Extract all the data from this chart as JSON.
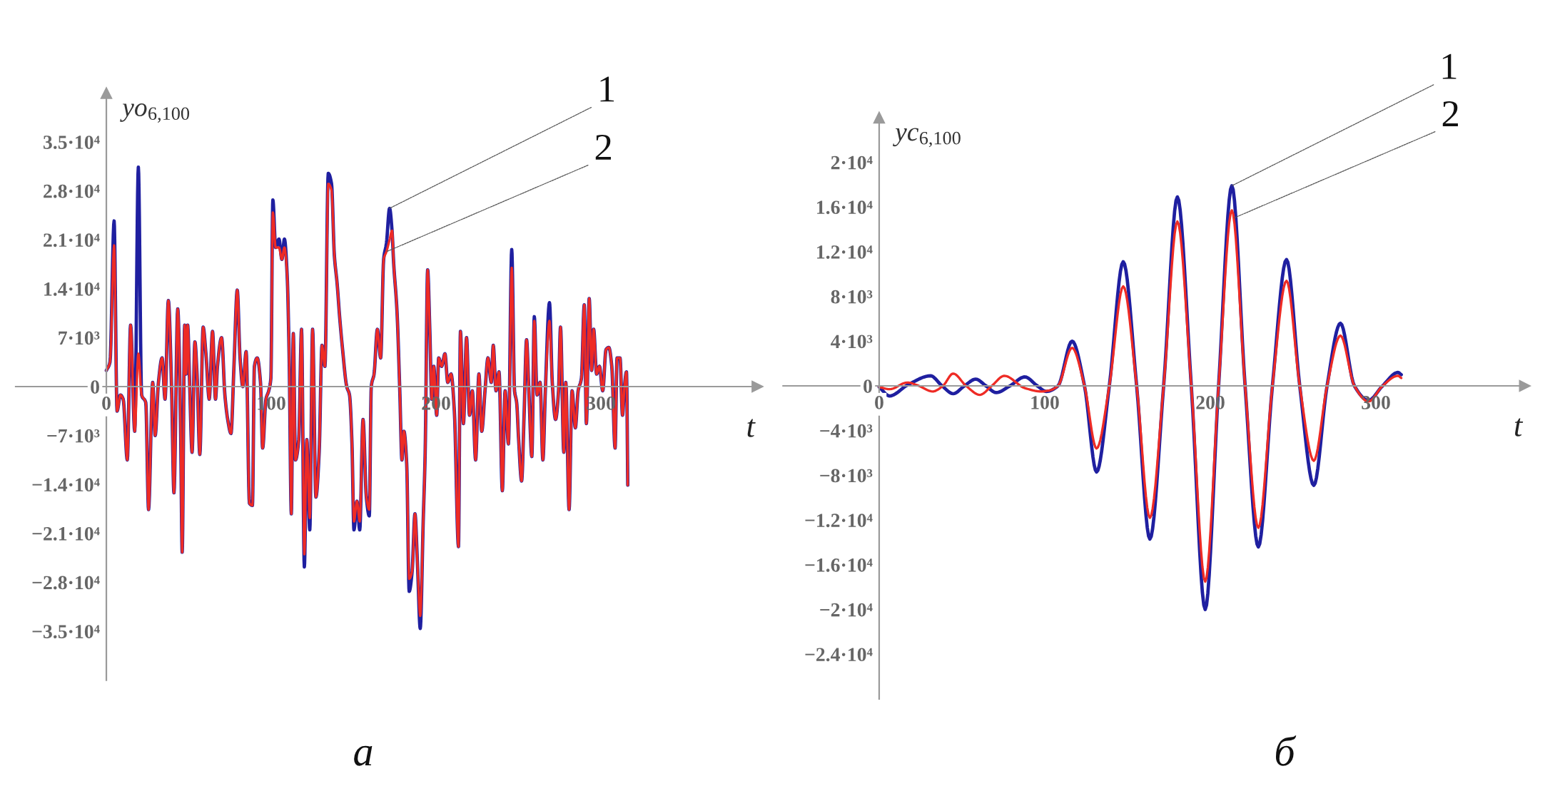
{
  "chart_data": [
    {
      "type": "line",
      "xlabel": "t",
      "ylabel": "yo$_{6,100}$",
      "annotations": [
        "а",
        {
          "text": "1",
          "x": 171.8,
          "y": 25500
        },
        {
          "text": "2",
          "x": 169.9,
          "y": 19300
        }
      ],
      "x": [
        0,
        2.2,
        4.7,
        6.5,
        8.5,
        10.2,
        12.7,
        14.7,
        17.2,
        19.4,
        21.4,
        23.9,
        25.6,
        28.1,
        29.6,
        31.6,
        33.8,
        35.6,
        37.6,
        39.6,
        41,
        43.3,
        45,
        46,
        47.5,
        48.4,
        49.3,
        50.5,
        52,
        53.7,
        55,
        56.7,
        58.7,
        60.4,
        62.4,
        64.4,
        66.2,
        67.4,
        69.9,
        71.9,
        73.6,
        75.6,
        77.4,
        79.4,
        81.1,
        82.8,
        84.8,
        86.8,
        88.6,
        89.8,
        91.5,
        93.5,
        94.8,
        96.8,
        98.5,
        99.8,
        101,
        102.7,
        104.7,
        106.5,
        108,
        109.7,
        110.9,
        112.2,
        113.4,
        114.7,
        116.7,
        118.4,
        120.1,
        121.6,
        123.4,
        125.1,
        127.1,
        129.1,
        130.8,
        132.6,
        134.6,
        136.6,
        138.3,
        140,
        141.5,
        143.3,
        145.8,
        147.5,
        149,
        150.2,
        152,
        153.7,
        155.7,
        157.7,
        159.5,
        160.7,
        162.4,
        164.4,
        166.4,
        168.2,
        169.9,
        171.8,
        173.3,
        174.3,
        176.3,
        178,
        179.3,
        180.5,
        182.2,
        183.7,
        185.5,
        187.2,
        188.7,
        190.4,
        192.2,
        193.4,
        194.9,
        196.2,
        197.4,
        198.6,
        200.4,
        201.6,
        203.4,
        205.4,
        207.1,
        209.1,
        211.1,
        213.6,
        214.8,
        216.6,
        218.5,
        220.3,
        222,
        224,
        226,
        227.7,
        229.7,
        231.5,
        233.5,
        234.7,
        236.4,
        238.2,
        240.2,
        241.9,
        243.9,
        245.9,
        247.6,
        248.9,
        250.1,
        251.9,
        253.4,
        254.9,
        256.3,
        258.1,
        259.6,
        261.3,
        263.1,
        264.8,
        266.3,
        268.8,
        270.5,
        272.5,
        274.3,
        275.5,
        277.5,
        278.7,
        280.7,
        282.5,
        284.5,
        286.2,
        288.2,
        289.9,
        291.2,
        292.9,
        294.4,
        295.6,
        297.4,
        299.1,
        301.1,
        303.1,
        304.8,
        306.6,
        308.6,
        309.8,
        311.6,
        313.1,
        314.3,
        315.5,
        316.3
      ],
      "series": [
        {
          "color": "#1f1fa0",
          "values": [
            2300,
            3500,
            23700,
            -3500,
            -1200,
            -1800,
            -10500,
            8800,
            -6400,
            31400,
            -1200,
            -2300,
            -17600,
            600,
            -7000,
            600,
            4100,
            -1800,
            12300,
            -600,
            -15200,
            11100,
            -5300,
            -23700,
            8800,
            1800,
            8800,
            600,
            -9400,
            6400,
            1800,
            -9700,
            8500,
            4700,
            -1800,
            7900,
            -1800,
            2900,
            7000,
            -1200,
            -4700,
            -6700,
            2900,
            13800,
            4100,
            0,
            5000,
            -16700,
            -17000,
            2900,
            4100,
            600,
            -8800,
            -1800,
            -600,
            1200,
            26700,
            19900,
            21100,
            18200,
            21100,
            15800,
            4100,
            -18200,
            7600,
            -10500,
            -7600,
            8200,
            -25800,
            -7600,
            -20500,
            8200,
            -15800,
            -9400,
            5900,
            2900,
            30500,
            29000,
            18800,
            14700,
            10000,
            5300,
            0,
            -1200,
            -8200,
            -20500,
            -16400,
            -20500,
            -4700,
            -15800,
            -18500,
            0,
            1800,
            8200,
            4100,
            18200,
            20500,
            25500,
            22300,
            17600,
            10800,
            -600,
            -10500,
            -6400,
            -11100,
            -29300,
            -26400,
            -18200,
            -25200,
            -34600,
            -19300,
            -9400,
            16700,
            8200,
            -1800,
            2900,
            -4100,
            4100,
            2900,
            4700,
            600,
            1800,
            -3500,
            -22900,
            7900,
            -5300,
            7000,
            -4100,
            -600,
            -10500,
            1800,
            -6400,
            -600,
            4100,
            600,
            5900,
            -600,
            2100,
            -14900,
            -600,
            -8200,
            19600,
            -600,
            -2300,
            -7600,
            -13500,
            -4100,
            6700,
            -600,
            -10000,
            10000,
            -1200,
            600,
            -10500,
            -600,
            12000,
            600,
            -4700,
            -600,
            8500,
            -9400,
            600,
            -17600,
            -600,
            -5900,
            -600,
            1200,
            11700,
            -5300,
            12600,
            2300,
            8200,
            1800,
            2900,
            -600,
            5300,
            5600,
            2900,
            -8800,
            4100,
            4100,
            -4100,
            0,
            2100,
            -14100
          ]
        },
        {
          "color": "#ee2b25",
          "values": [
            2300,
            3500,
            20200,
            -3500,
            -1200,
            -1800,
            -10500,
            8800,
            -6400,
            4700,
            -1200,
            -2300,
            -17600,
            600,
            -7000,
            600,
            4100,
            -1800,
            12300,
            -600,
            -15200,
            11100,
            -5300,
            -23700,
            8800,
            1800,
            8800,
            600,
            -9400,
            6400,
            1800,
            -9700,
            8500,
            4700,
            -1800,
            7900,
            -1800,
            2900,
            7000,
            -1200,
            -4700,
            -6700,
            2900,
            13800,
            4100,
            0,
            5000,
            -16700,
            -17000,
            2900,
            4100,
            600,
            -8800,
            -1800,
            -600,
            1200,
            24900,
            19900,
            19900,
            18200,
            19900,
            15800,
            4100,
            -18200,
            7600,
            -10500,
            -7600,
            8200,
            -24000,
            -7600,
            -18800,
            8200,
            -15800,
            -9400,
            5900,
            2900,
            29000,
            28100,
            18800,
            14700,
            10000,
            5300,
            0,
            -1200,
            -8200,
            -19300,
            -16400,
            -19300,
            -4700,
            -15800,
            -17600,
            0,
            1800,
            8200,
            4100,
            18200,
            19300,
            21000,
            22300,
            17600,
            10800,
            -600,
            -10500,
            -6400,
            -11100,
            -27500,
            -26400,
            -18200,
            -25200,
            -32800,
            -19300,
            -9400,
            16700,
            8200,
            -1800,
            2900,
            -4100,
            4100,
            2900,
            4700,
            600,
            1800,
            -3500,
            -22900,
            7900,
            -5300,
            7000,
            -4100,
            -600,
            -10500,
            1800,
            -6400,
            -600,
            4100,
            600,
            5900,
            -600,
            2100,
            -14900,
            -600,
            -8200,
            17000,
            -600,
            -2300,
            -7600,
            -13500,
            -4100,
            6700,
            -600,
            -10000,
            9400,
            -1200,
            600,
            -10500,
            -600,
            9400,
            600,
            -4700,
            -600,
            8500,
            -9400,
            600,
            -17600,
            -600,
            -5900,
            -600,
            1200,
            11700,
            -5300,
            12600,
            2300,
            8200,
            1800,
            2900,
            -600,
            5300,
            5600,
            2900,
            -8800,
            4100,
            4100,
            -4100,
            0,
            2100,
            -14100
          ]
        }
      ],
      "xlim": [
        -55,
        395
      ],
      "ylim": [
        -42000,
        42000
      ],
      "xticks": [
        0,
        100,
        200,
        300
      ],
      "yticks": [
        {
          "value": -35000,
          "label": "−3.5·10⁴"
        },
        {
          "value": -28000,
          "label": "−2.8·10⁴"
        },
        {
          "value": -21000,
          "label": "−2.1·10⁴"
        },
        {
          "value": -14000,
          "label": "−1.4·10⁴"
        },
        {
          "value": -7000,
          "label": "−7·10³"
        },
        0,
        {
          "value": 7000,
          "label": "7·10³"
        },
        {
          "value": 14000,
          "label": "1.4·10⁴"
        },
        {
          "value": 21000,
          "label": "2.1·10⁴"
        },
        {
          "value": 28000,
          "label": "2.8·10⁴"
        },
        {
          "value": 35000,
          "label": "3.5·10⁴"
        }
      ]
    },
    {
      "type": "line",
      "xlabel": "t",
      "ylabel": "yc$_{6,100}$",
      "annotations": [
        "б",
        {
          "text": "1",
          "x": 213,
          "y": 17900
        },
        {
          "text": "2",
          "x": 214,
          "y": 15000
        }
      ],
      "series": [
        {
          "color": "#1f1fa0",
          "x": [
            0,
            6.3,
            17.4,
            31,
            38,
            44.7,
            51.5,
            58.3,
            64.5,
            70.7,
            79,
            88,
            95.5,
            101,
            108,
            116.5,
            124,
            131.3,
            139,
            147.4,
            155.5,
            163.5,
            171.8,
            180.1,
            188.5,
            196.9,
            205,
            213,
            221,
            229,
            237.5,
            246,
            254,
            262.5,
            270.5,
            278.6,
            287,
            295.5,
            304,
            313.3,
            315.3
          ],
          "values": [
            -100,
            -900,
            100,
            900,
            0,
            -700,
            0,
            600,
            0,
            -600,
            0,
            800,
            0,
            -500,
            0,
            4000,
            0,
            -7700,
            0,
            11100,
            0,
            -13700,
            0,
            16900,
            0,
            -20000,
            0,
            17900,
            0,
            -14400,
            0,
            11300,
            0,
            -8900,
            0,
            5600,
            0,
            -1300,
            0,
            1200,
            1000
          ]
        },
        {
          "color": "#ee2b25",
          "x": [
            0,
            6.3,
            17,
            24,
            32.3,
            38.5,
            44.7,
            52.5,
            60.8,
            68,
            75.6,
            88,
            98,
            103,
            108,
            116.5,
            124,
            131.3,
            139,
            147.4,
            155.5,
            163.5,
            171.8,
            180.1,
            188.5,
            196.9,
            205,
            213,
            221,
            229,
            237.5,
            246,
            254,
            262.5,
            270.5,
            278.6,
            287,
            295.5,
            304,
            313.3,
            315.3
          ],
          "values": [
            -100,
            -300,
            300,
            0,
            -500,
            0,
            1100,
            0,
            -800,
            0,
            900,
            -200,
            -500,
            -400,
            0,
            3400,
            0,
            -5600,
            0,
            8900,
            0,
            -11800,
            0,
            14700,
            0,
            -17500,
            0,
            15700,
            0,
            -12700,
            0,
            9400,
            0,
            -6700,
            0,
            4500,
            0,
            -1400,
            0,
            900,
            700
          ]
        }
      ],
      "xlim": [
        -58,
        390
      ],
      "ylim": [
        -28000,
        24000
      ],
      "xticks": [
        0,
        100,
        200,
        300
      ],
      "yticks": [
        {
          "value": -24000,
          "label": "−2.4·10⁴"
        },
        {
          "value": -20000,
          "label": "−2·10⁴"
        },
        {
          "value": -16000,
          "label": "−1.6·10⁴"
        },
        {
          "value": -12000,
          "label": "−1.2·10⁴"
        },
        {
          "value": -8000,
          "label": "−8·10³"
        },
        {
          "value": -4000,
          "label": "−4·10³"
        },
        0,
        {
          "value": 4000,
          "label": "4·10³"
        },
        {
          "value": 8000,
          "label": "8·10³"
        },
        {
          "value": 12000,
          "label": "1.2·10⁴"
        },
        {
          "value": 16000,
          "label": "1.6·10⁴"
        },
        {
          "value": 20000,
          "label": "2·10⁴"
        }
      ]
    }
  ]
}
